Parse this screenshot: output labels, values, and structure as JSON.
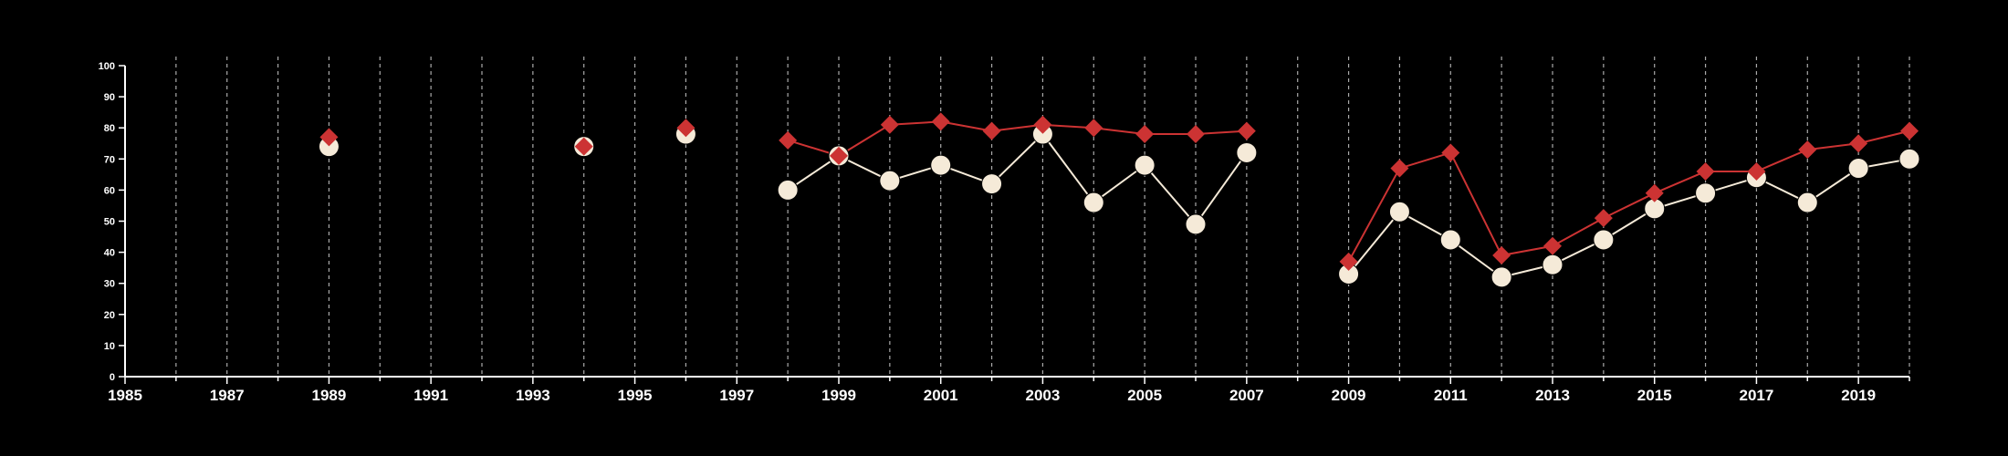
{
  "chart_data": {
    "type": "line",
    "title": "",
    "xlabel": "",
    "ylabel": "",
    "xlim": [
      1985,
      2020
    ],
    "ylim": [
      0,
      100
    ],
    "y_ticks": [
      0,
      10,
      20,
      30,
      40,
      50,
      60,
      70,
      80,
      90,
      100
    ],
    "x_tick_labels": [
      1985,
      1987,
      1989,
      1991,
      1993,
      1995,
      1997,
      1999,
      2001,
      2003,
      2005,
      2007,
      2009,
      2011,
      2013,
      2015,
      2017,
      2019
    ],
    "vertical_gridlines": "yearly, dashed",
    "legend": "none",
    "x": [
      1985,
      1986,
      1987,
      1988,
      1989,
      1990,
      1991,
      1992,
      1993,
      1994,
      1995,
      1996,
      1997,
      1998,
      1999,
      2000,
      2001,
      2002,
      2003,
      2004,
      2005,
      2006,
      2007,
      2008,
      2009,
      2010,
      2011,
      2012,
      2013,
      2014,
      2015,
      2016,
      2017,
      2018,
      2019,
      2020
    ],
    "series": [
      {
        "marker": "diamond",
        "color": "#cc3333",
        "values": [
          null,
          null,
          null,
          null,
          77,
          null,
          null,
          null,
          null,
          74,
          null,
          80,
          null,
          76,
          71,
          81,
          82,
          79,
          81,
          80,
          78,
          78,
          79,
          null,
          37,
          67,
          72,
          39,
          42,
          51,
          59,
          66,
          66,
          73,
          75,
          79
        ]
      },
      {
        "marker": "circle",
        "color": "#f5ead8",
        "values": [
          null,
          null,
          null,
          null,
          74,
          null,
          null,
          null,
          null,
          74,
          null,
          78,
          null,
          60,
          71,
          63,
          68,
          62,
          78,
          56,
          68,
          49,
          72,
          null,
          33,
          53,
          44,
          32,
          36,
          44,
          54,
          59,
          64,
          56,
          67,
          70
        ]
      }
    ]
  }
}
